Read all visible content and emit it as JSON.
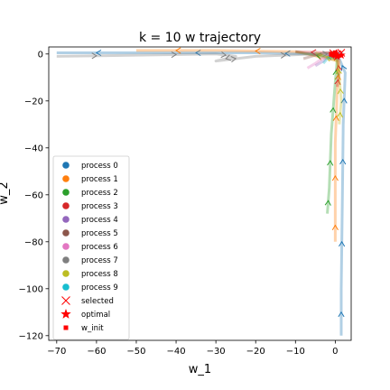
{
  "chart_data": {
    "type": "line",
    "title": "k = 10 w trajectory",
    "xlabel": "w_1",
    "ylabel": "w_2",
    "xlim": [
      -72,
      4
    ],
    "ylim": [
      -122,
      3
    ],
    "xticks": [
      -70,
      -60,
      -50,
      -40,
      -30,
      -20,
      -10,
      0
    ],
    "yticks": [
      0,
      -20,
      -40,
      -60,
      -80,
      -100,
      -120
    ],
    "xtick_labels": [
      "−70",
      "−60",
      "−50",
      "−40",
      "−30",
      "−20",
      "−10",
      "0"
    ],
    "ytick_labels": [
      "0",
      "−20",
      "−40",
      "−60",
      "−80",
      "−100",
      "−120"
    ],
    "grid": false,
    "legend_position": "lower-left",
    "legend": [
      {
        "label": "process 0",
        "marker": "circle",
        "color": "#1f77b4"
      },
      {
        "label": "process 1",
        "marker": "circle",
        "color": "#ff7f0e"
      },
      {
        "label": "process 2",
        "marker": "circle",
        "color": "#2ca02c"
      },
      {
        "label": "process 3",
        "marker": "circle",
        "color": "#d62728"
      },
      {
        "label": "process 4",
        "marker": "circle",
        "color": "#9467bd"
      },
      {
        "label": "process 5",
        "marker": "circle",
        "color": "#8c564b"
      },
      {
        "label": "process 6",
        "marker": "circle",
        "color": "#e377c2"
      },
      {
        "label": "process 7",
        "marker": "circle",
        "color": "#7f7f7f"
      },
      {
        "label": "process 8",
        "marker": "circle",
        "color": "#bcbd22"
      },
      {
        "label": "process 9",
        "marker": "circle",
        "color": "#17becf"
      },
      {
        "label": "selected",
        "marker": "x",
        "color": "#ff0000"
      },
      {
        "label": "optimal",
        "marker": "star",
        "color": "#ff0000"
      },
      {
        "label": "w_init",
        "marker": "square",
        "color": "#ff0000"
      }
    ],
    "series": [
      {
        "name": "process 0",
        "color": "#1f77b4",
        "points": [
          [
            1.5,
            -120
          ],
          [
            1.5,
            -100
          ],
          [
            1.8,
            -60
          ],
          [
            2,
            -30
          ],
          [
            2.5,
            -8
          ],
          [
            1,
            -2
          ],
          [
            -5,
            0
          ],
          [
            -20,
            0.5
          ],
          [
            -50,
            0.5
          ],
          [
            -70,
            0.5
          ]
        ]
      },
      {
        "name": "process 1",
        "color": "#ff7f0e",
        "points": [
          [
            0,
            -80
          ],
          [
            0,
            -66
          ],
          [
            0,
            -38
          ],
          [
            0.5,
            -15
          ],
          [
            1,
            -3
          ],
          [
            -10,
            1
          ],
          [
            -30,
            1.5
          ],
          [
            -50,
            1.5
          ]
        ]
      },
      {
        "name": "process 2",
        "color": "#2ca02c",
        "points": [
          [
            -2,
            -68
          ],
          [
            -1.5,
            -57
          ],
          [
            -1,
            -34
          ],
          [
            0,
            -12
          ],
          [
            0.5,
            -2
          ],
          [
            -10,
            1
          ]
        ]
      },
      {
        "name": "process 3",
        "color": "#d62728",
        "points": [
          [
            0.5,
            -14
          ],
          [
            1,
            -8
          ],
          [
            0.5,
            -2
          ],
          [
            -2,
            0.5
          ],
          [
            -10,
            1
          ]
        ]
      },
      {
        "name": "process 4",
        "color": "#9467bd",
        "points": [
          [
            -5,
            -5
          ],
          [
            -3,
            -3
          ],
          [
            -2,
            -1
          ],
          [
            0,
            0
          ],
          [
            1,
            0.5
          ]
        ]
      },
      {
        "name": "process 5",
        "color": "#8c564b",
        "points": [
          [
            -8,
            -2
          ],
          [
            -6,
            -1
          ],
          [
            -4,
            0
          ],
          [
            -2,
            0.5
          ],
          [
            0,
            1
          ]
        ]
      },
      {
        "name": "process 6",
        "color": "#e377c2",
        "points": [
          [
            -7,
            -6
          ],
          [
            -5,
            -4
          ],
          [
            -3,
            -1.5
          ],
          [
            -1,
            0
          ],
          [
            1,
            1
          ]
        ]
      },
      {
        "name": "process 7",
        "color": "#7f7f7f",
        "points": [
          [
            -70,
            -1
          ],
          [
            -50,
            -0.5
          ],
          [
            -30,
            0
          ],
          [
            -25,
            -1
          ],
          [
            -30,
            -3
          ],
          [
            -20,
            -1
          ],
          [
            -5,
            0
          ],
          [
            1,
            0
          ]
        ]
      },
      {
        "name": "process 8",
        "color": "#bcbd22",
        "points": [
          [
            1,
            -30
          ],
          [
            1.5,
            -20
          ],
          [
            1,
            -10
          ],
          [
            0.5,
            -3
          ],
          [
            -5,
            0.5
          ]
        ]
      },
      {
        "name": "process 9",
        "color": "#17becf",
        "points": [
          [
            -3,
            -4
          ],
          [
            -2,
            -2
          ],
          [
            -1,
            -1
          ],
          [
            0.5,
            0
          ],
          [
            2,
            0.5
          ]
        ]
      }
    ],
    "selected": [
      [
        1.5,
        0.5
      ],
      [
        0.5,
        0
      ],
      [
        -0.5,
        0.3
      ]
    ],
    "optimal": [
      [
        1.5,
        -0.5
      ],
      [
        0.5,
        -1
      ]
    ],
    "w_init": [
      [
        -1,
        0
      ],
      [
        -0.5,
        -0.5
      ],
      [
        0,
        0.5
      ]
    ]
  }
}
